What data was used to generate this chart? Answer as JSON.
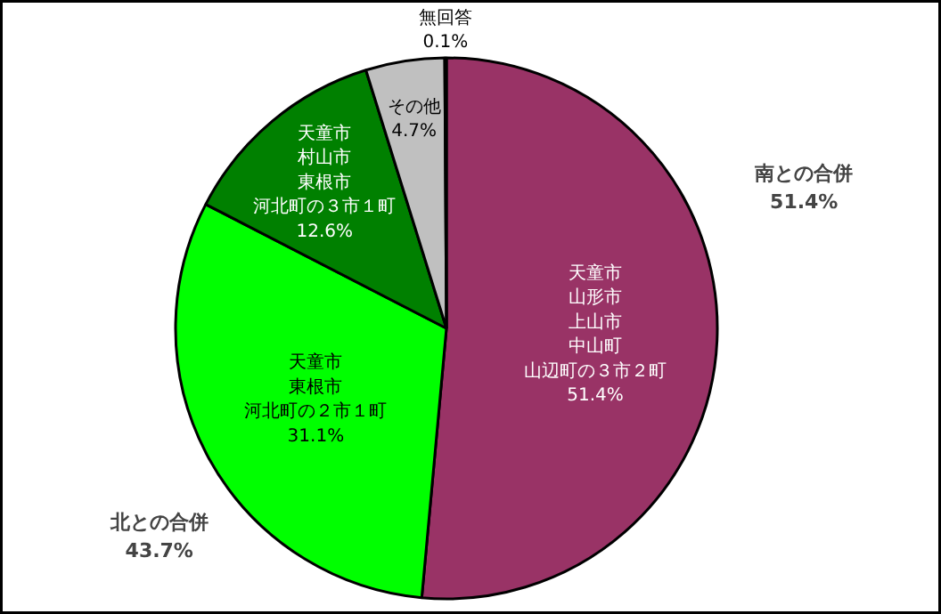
{
  "chart_data": {
    "type": "pie",
    "categories": [
      "天童市山形市上山市中山町山辺町の３市２町",
      "天童市東根市河北町の２市１町",
      "天童市村山市東根市河北町の３市１町",
      "その他",
      "無回答"
    ],
    "values": [
      51.4,
      31.1,
      12.6,
      4.7,
      0.1
    ],
    "value_labels": [
      "51.4%",
      "31.1%",
      "12.6%",
      "4.7%",
      "0.1%"
    ],
    "colors": [
      "#993366",
      "#00ff00",
      "#008000",
      "#c0c0c0",
      "#ffffcc"
    ],
    "annotations": [
      "南との合併\n51.4%",
      "北との合併\n43.7%"
    ]
  }
}
